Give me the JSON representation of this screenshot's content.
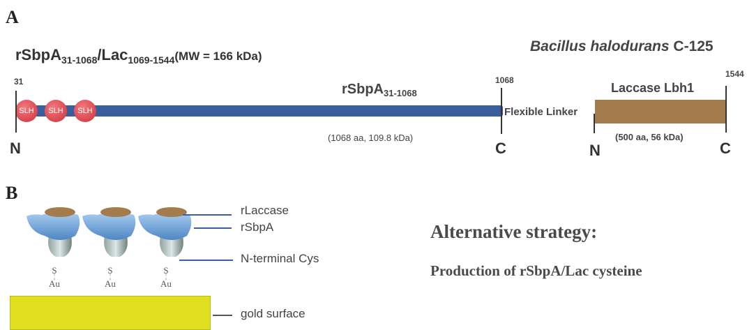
{
  "panel_a": {
    "label": "A",
    "construct": {
      "main": "rSbpA",
      "sub1": "31-1068",
      "sep": "/Lac",
      "sub2": "1069-1544",
      "mw": "(MW = 166 kDa)"
    },
    "species": {
      "italic": "Bacillus halodurans",
      "strain": "C-125"
    },
    "pos_31": "31",
    "pos_1068": "1068",
    "pos_1544": "1544",
    "sbpa_label": {
      "main": "rSbpA",
      "sub": "31-1068"
    },
    "sbpa_info": "(1068 aa, 109.8 kDa)",
    "slh": [
      "SLH",
      "SLH",
      "SLH"
    ],
    "linker": "Flexible Linker",
    "laccase_label": "Laccase Lbh1",
    "laccase_info": "(500 aa, 56 kDa)",
    "termini": {
      "n1": "N",
      "c1": "C",
      "n2": "N",
      "c2": "C"
    },
    "colors": {
      "sbpa_bar": "#3a5e9c",
      "slh": "#d9434a",
      "laccase": "#a37b4c"
    }
  },
  "panel_b": {
    "label": "B",
    "callouts": {
      "rlaccase": "rLaccase",
      "rsbpa": "rSbpA",
      "cys": "N-terminal Cys",
      "gold": "gold surface"
    },
    "bond": {
      "s": "S",
      "au": "Au"
    },
    "strategy_title": "Alternative strategy:",
    "strategy_text": "Production of rSbpA/Lac cysteine",
    "colors": {
      "gold": "#e0e020",
      "protein": "#6fa3d6",
      "laccase_cap": "#a37b4c"
    }
  }
}
